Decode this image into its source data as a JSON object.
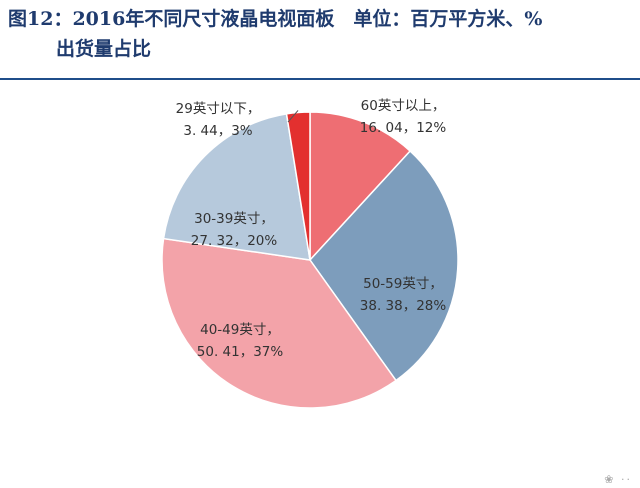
{
  "header": {
    "title_line1": "图12：2016年不同尺寸液晶电视面板　单位：百万平方米、%",
    "title_line2": "出货量占比"
  },
  "chart_data": {
    "type": "pie",
    "start_angle_deg": 90,
    "direction": "clockwise",
    "slices": [
      {
        "name": "60英寸以上",
        "value": 16.04,
        "percent": 12,
        "color": "#ee6e73",
        "label_line1": "60英寸以上，",
        "label_line2": "16. 04，12%"
      },
      {
        "name": "50-59英寸",
        "value": 38.38,
        "percent": 28,
        "color": "#7d9dbc",
        "label_line1": "50-59英寸，",
        "label_line2": "38. 38，28%"
      },
      {
        "name": "40-49英寸",
        "value": 50.41,
        "percent": 37,
        "color": "#f3a3a9",
        "label_line1": "40-49英寸，",
        "label_line2": "50. 41，37%"
      },
      {
        "name": "30-39英寸",
        "value": 27.32,
        "percent": 20,
        "color": "#b6c9dc",
        "label_line1": "30-39英寸，",
        "label_line2": "27. 32，20%"
      },
      {
        "name": "29英寸以下",
        "value": 3.44,
        "percent": 3,
        "color": "#e3302f",
        "label_line1": "29英寸以下，",
        "label_line2": "3. 44，3%"
      }
    ]
  }
}
